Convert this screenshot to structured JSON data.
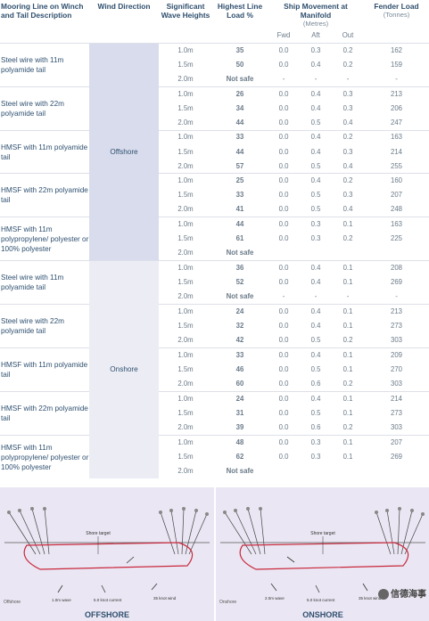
{
  "headers": {
    "mooring": "Mooring Line on Winch and Tail Description",
    "wind": "Wind Direction",
    "wave": "Significant Wave Heights",
    "load": "Highest Line Load %",
    "ship": "Ship Movement at Manifold",
    "ship_units": "(Metres)",
    "fwd": "Fwd",
    "aft": "Aft",
    "out": "Out",
    "fender": "Fender Load",
    "fender_units": "(Tonnes)"
  },
  "offshore_label": "Offshore",
  "onshore_label": "Onshore",
  "groups": [
    {
      "desc": "Steel wire with 11m polyamide tail",
      "rows": [
        {
          "wave": "1.0m",
          "load": "35",
          "lc": "g",
          "fwd": "0.0",
          "aft": "0.3",
          "out": "0.2",
          "fender": "162"
        },
        {
          "wave": "1.5m",
          "load": "50",
          "lc": "o",
          "fwd": "0.0",
          "aft": "0.4",
          "out": "0.2",
          "fender": "159"
        },
        {
          "wave": "2.0m",
          "load": "Not safe",
          "lc": "n",
          "fwd": "-",
          "aft": "-",
          "out": "-",
          "fender": "-"
        }
      ]
    },
    {
      "desc": "Steel wire with 22m polyamide tail",
      "rows": [
        {
          "wave": "1.0m",
          "load": "26",
          "lc": "g",
          "fwd": "0.0",
          "aft": "0.4",
          "out": "0.3",
          "fender": "213"
        },
        {
          "wave": "1.5m",
          "load": "34",
          "lc": "g",
          "fwd": "0.0",
          "aft": "0.4",
          "out": "0.3",
          "fender": "206"
        },
        {
          "wave": "2.0m",
          "load": "44",
          "lc": "g",
          "fwd": "0.0",
          "aft": "0.5",
          "out": "0.4",
          "fender": "247"
        }
      ]
    },
    {
      "desc": "HMSF with 11m polyamide tail",
      "rows": [
        {
          "wave": "1.0m",
          "load": "33",
          "lc": "g",
          "fwd": "0.0",
          "aft": "0.4",
          "out": "0.2",
          "fender": "163"
        },
        {
          "wave": "1.5m",
          "load": "44",
          "lc": "g",
          "fwd": "0.0",
          "aft": "0.4",
          "out": "0.3",
          "fender": "214"
        },
        {
          "wave": "2.0m",
          "load": "57",
          "lc": "r",
          "fwd": "0.0",
          "aft": "0.5",
          "out": "0.4",
          "fender": "255"
        }
      ]
    },
    {
      "desc": "HMSF with 22m polyamide tail",
      "rows": [
        {
          "wave": "1.0m",
          "load": "25",
          "lc": "g",
          "fwd": "0.0",
          "aft": "0.4",
          "out": "0.2",
          "fender": "160"
        },
        {
          "wave": "1.5m",
          "load": "33",
          "lc": "g",
          "fwd": "0.0",
          "aft": "0.5",
          "out": "0.3",
          "fender": "207"
        },
        {
          "wave": "2.0m",
          "load": "41",
          "lc": "g",
          "fwd": "0.0",
          "aft": "0.5",
          "out": "0.4",
          "fender": "248"
        }
      ]
    },
    {
      "desc": "HMSF with 11m polypropylene/ polyester or 100% polyester",
      "rows": [
        {
          "wave": "1.0m",
          "load": "44",
          "lc": "g",
          "fwd": "0.0",
          "aft": "0.3",
          "out": "0.1",
          "fender": "163"
        },
        {
          "wave": "1.5m",
          "load": "61",
          "lc": "r",
          "fwd": "0.0",
          "aft": "0.3",
          "out": "0.2",
          "fender": "225"
        },
        {
          "wave": "2.0m",
          "load": "Not safe",
          "lc": "n",
          "fwd": "",
          "aft": "",
          "out": "",
          "fender": ""
        }
      ]
    },
    {
      "desc": "Steel wire with 11m polyamide tail",
      "rows": [
        {
          "wave": "1.0m",
          "load": "36",
          "lc": "g",
          "fwd": "0.0",
          "aft": "0.4",
          "out": "0.1",
          "fender": "208"
        },
        {
          "wave": "1.5m",
          "load": "52",
          "lc": "o",
          "fwd": "0.0",
          "aft": "0.4",
          "out": "0.1",
          "fender": "269"
        },
        {
          "wave": "2.0m",
          "load": "Not safe",
          "lc": "n",
          "fwd": "-",
          "aft": "-",
          "out": "-",
          "fender": "-"
        }
      ]
    },
    {
      "desc": "Steel wire with 22m polyamide tail",
      "rows": [
        {
          "wave": "1.0m",
          "load": "24",
          "lc": "g",
          "fwd": "0.0",
          "aft": "0.4",
          "out": "0.1",
          "fender": "213"
        },
        {
          "wave": "1.5m",
          "load": "32",
          "lc": "g",
          "fwd": "0.0",
          "aft": "0.4",
          "out": "0.1",
          "fender": "273"
        },
        {
          "wave": "2.0m",
          "load": "42",
          "lc": "g",
          "fwd": "0.0",
          "aft": "0.5",
          "out": "0.2",
          "fender": "303"
        }
      ]
    },
    {
      "desc": "HMSF with 11m polyamide tail",
      "rows": [
        {
          "wave": "1.0m",
          "load": "33",
          "lc": "g",
          "fwd": "0.0",
          "aft": "0.4",
          "out": "0.1",
          "fender": "209"
        },
        {
          "wave": "1.5m",
          "load": "46",
          "lc": "o",
          "fwd": "0.0",
          "aft": "0.5",
          "out": "0.1",
          "fender": "270"
        },
        {
          "wave": "2.0m",
          "load": "60",
          "lc": "o",
          "fwd": "0.0",
          "aft": "0.6",
          "out": "0.2",
          "fender": "303"
        }
      ]
    },
    {
      "desc": "HMSF with 22m polyamide tail",
      "rows": [
        {
          "wave": "1.0m",
          "load": "24",
          "lc": "g",
          "fwd": "0.0",
          "aft": "0.4",
          "out": "0.1",
          "fender": "214"
        },
        {
          "wave": "1.5m",
          "load": "31",
          "lc": "g",
          "fwd": "0.0",
          "aft": "0.5",
          "out": "0.1",
          "fender": "273"
        },
        {
          "wave": "2.0m",
          "load": "39",
          "lc": "g",
          "fwd": "0.0",
          "aft": "0.6",
          "out": "0.2",
          "fender": "303"
        }
      ]
    },
    {
      "desc": "HMSF with 11m polypropylene/ polyester or 100% polyester",
      "rows": [
        {
          "wave": "1.0m",
          "load": "48",
          "lc": "o",
          "fwd": "0.0",
          "aft": "0.3",
          "out": "0.1",
          "fender": "207"
        },
        {
          "wave": "1.5m",
          "load": "62",
          "lc": "r",
          "fwd": "0.0",
          "aft": "0.3",
          "out": "0.1",
          "fender": "269"
        },
        {
          "wave": "2.0m",
          "load": "Not safe",
          "lc": "n",
          "fwd": "",
          "aft": "",
          "out": "",
          "fender": ""
        }
      ]
    }
  ],
  "diagram": {
    "offshore_caption": "OFFSHORE",
    "onshore_caption": "ONSHORE",
    "offshore_label": "Offshore",
    "onshore_label": "Onshore",
    "shore_target": "Shore target",
    "wave_off": "1.0m wave",
    "current_off": "5.0 knot current",
    "wind_off": "35 knot wind",
    "wave_on": "2.0m wave",
    "current_on": "5.0 knot current",
    "wind_on": "35 knot wind",
    "watermark": "信德海事"
  }
}
